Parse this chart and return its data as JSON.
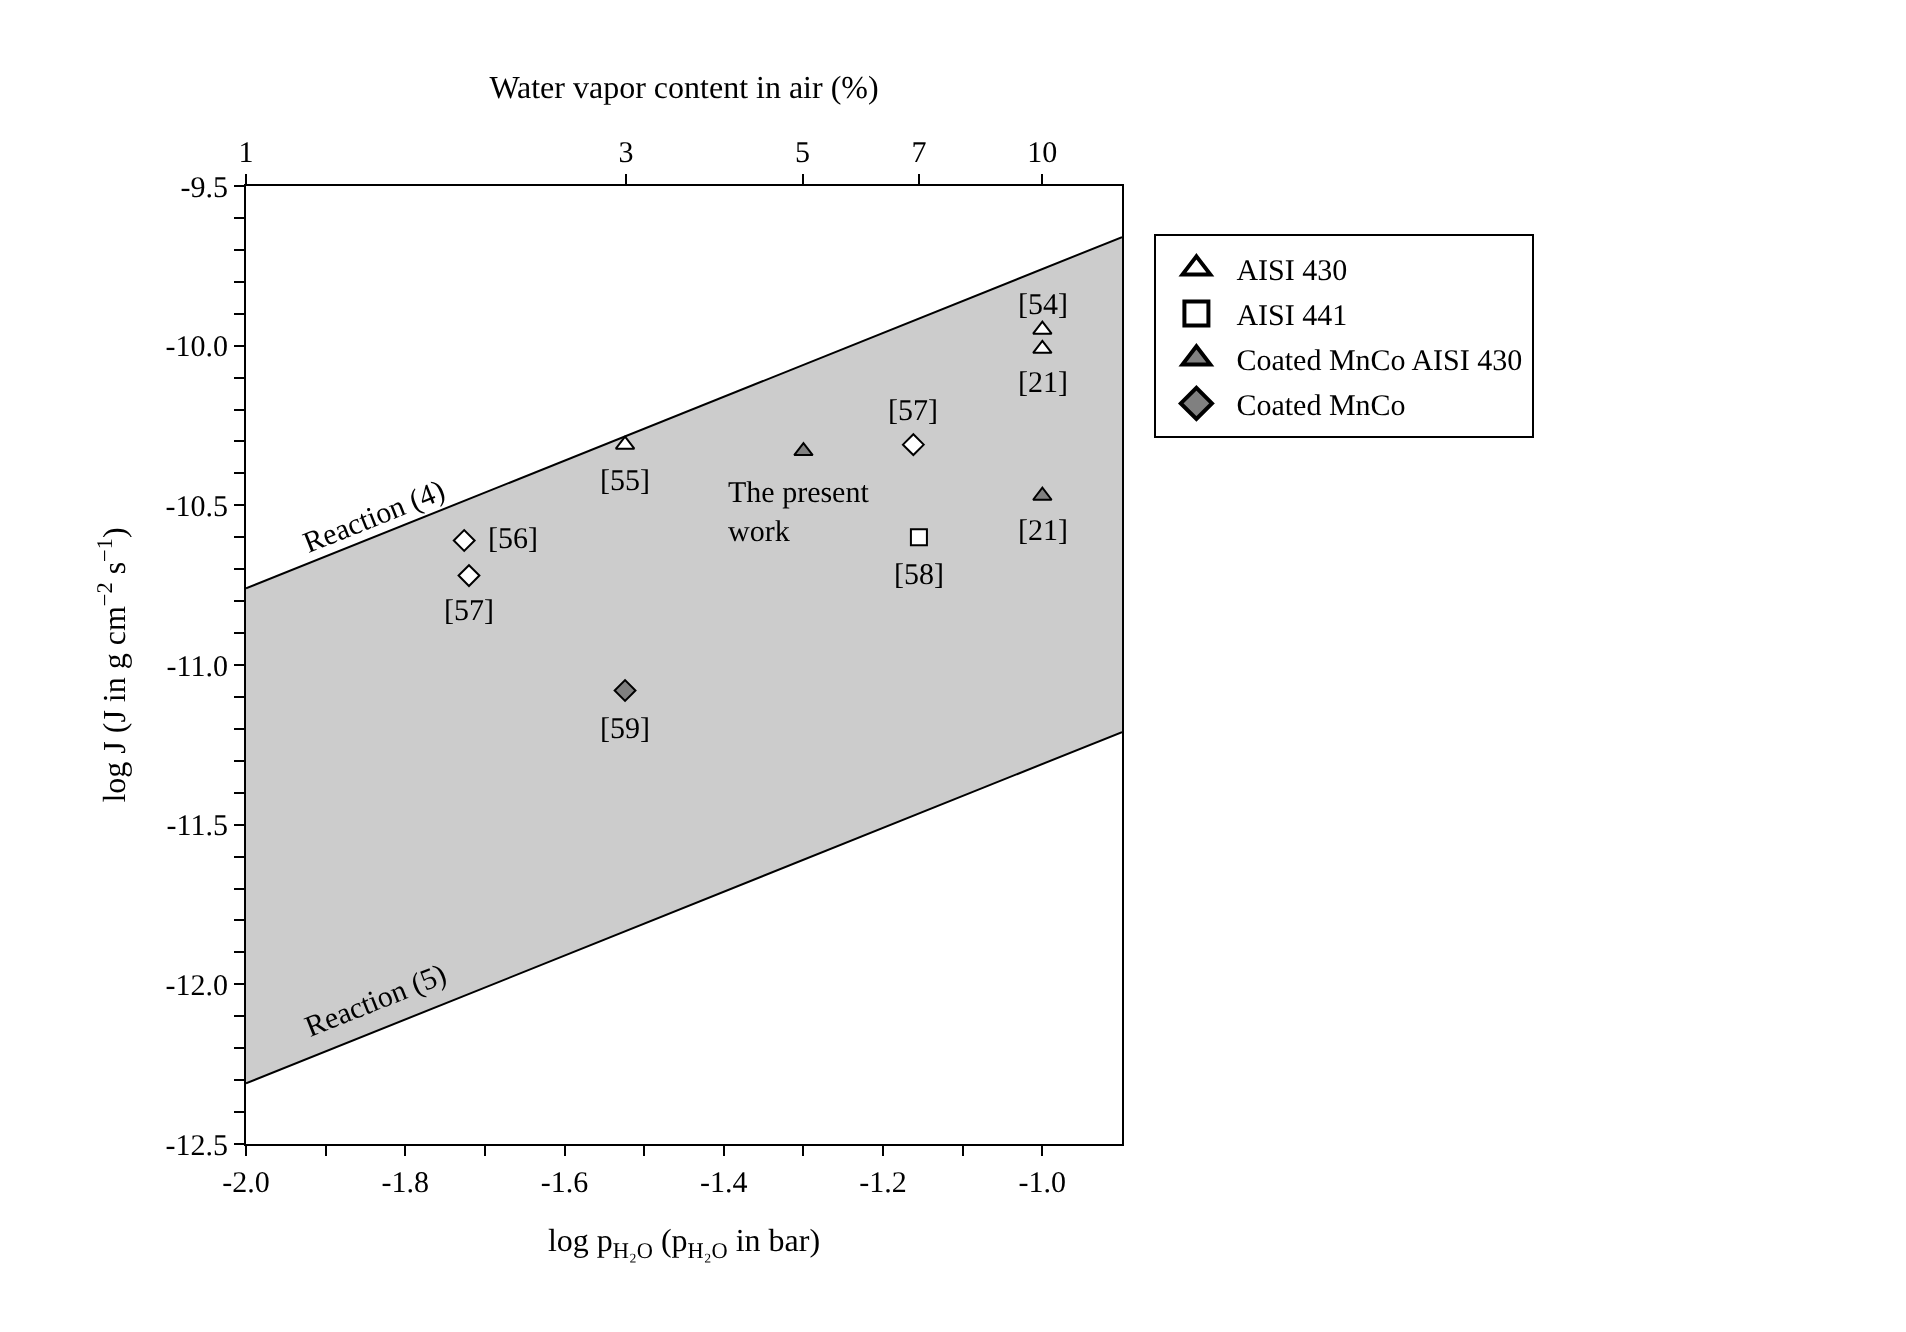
{
  "chart_data": {
    "type": "scatter",
    "xlabel": "log p$_{H₂O}$ (p$_{H₂O}$ in bar)",
    "ylabel": "log J (J in g cm$^{−2}$ s$^{−1}$)",
    "x2label": "Water vapor content in air (%)",
    "xlim": [
      -2.0,
      -0.9
    ],
    "ylim": [
      -12.5,
      -9.5
    ],
    "xticks": [
      {
        "value": -2.0,
        "label": "-2.0"
      },
      {
        "value": -1.9,
        "label": null
      },
      {
        "value": -1.8,
        "label": "-1.8"
      },
      {
        "value": -1.7,
        "label": null
      },
      {
        "value": -1.6,
        "label": "-1.6"
      },
      {
        "value": -1.5,
        "label": null
      },
      {
        "value": -1.4,
        "label": "-1.4"
      },
      {
        "value": -1.3,
        "label": null
      },
      {
        "value": -1.2,
        "label": "-1.2"
      },
      {
        "value": -1.1,
        "label": null
      },
      {
        "value": -1.0,
        "label": "-1.0"
      }
    ],
    "x2lim": [
      1,
      12.59
    ],
    "log": "x2",
    "x2ticks": [
      1,
      3,
      5,
      7,
      10
    ],
    "yticks": [
      {
        "value": -12.5,
        "label": "-12.5"
      },
      {
        "value": -12.4,
        "label": null
      },
      {
        "value": -12.3,
        "label": null
      },
      {
        "value": -12.2,
        "label": null
      },
      {
        "value": -12.1,
        "label": null
      },
      {
        "value": -12.0,
        "label": "-12.0"
      },
      {
        "value": -11.9,
        "label": null
      },
      {
        "value": -11.8,
        "label": null
      },
      {
        "value": -11.7,
        "label": null
      },
      {
        "value": -11.6,
        "label": null
      },
      {
        "value": -11.5,
        "label": "-11.5"
      },
      {
        "value": -11.4,
        "label": null
      },
      {
        "value": -11.3,
        "label": null
      },
      {
        "value": -11.2,
        "label": null
      },
      {
        "value": -11.1,
        "label": null
      },
      {
        "value": -11.0,
        "label": "-11.0"
      },
      {
        "value": -10.9,
        "label": null
      },
      {
        "value": -10.8,
        "label": null
      },
      {
        "value": -10.7,
        "label": null
      },
      {
        "value": -10.6,
        "label": null
      },
      {
        "value": -10.5,
        "label": "-10.5"
      },
      {
        "value": -10.4,
        "label": null
      },
      {
        "value": -10.3,
        "label": null
      },
      {
        "value": -10.2,
        "label": null
      },
      {
        "value": -10.1,
        "label": null
      },
      {
        "value": -10.0,
        "label": "-10.0"
      },
      {
        "value": -9.9,
        "label": null
      },
      {
        "value": -9.8,
        "label": null
      },
      {
        "value": -9.7,
        "label": null
      },
      {
        "value": -9.6,
        "label": null
      },
      {
        "value": -9.5,
        "label": "-9.5"
      }
    ],
    "legend": "right",
    "series": [
      {
        "type": "line",
        "color": "#000000",
        "x": [
          -2.0,
          -0.9
        ],
        "values": [
          -12.31,
          -11.21
        ],
        "marker": "none",
        "lower": [
          -12.31,
          -11.21
        ],
        "upper": [
          -10.76,
          -9.66
        ]
      },
      {
        "type": "line",
        "color": "#000000",
        "x": [
          -2.0,
          -0.9
        ],
        "values": [
          -10.76,
          -9.66
        ],
        "marker": "none"
      },
      {
        "name": "AISI 430",
        "color": "#ffffff",
        "marker": "triangle",
        "x": [
          -1.524,
          -1.0,
          -1.0
        ],
        "values": [
          -10.31,
          -9.95,
          -10.01
        ]
      },
      {
        "color": "#ffffff",
        "marker": "diamond",
        "x": [
          -1.726,
          -1.72,
          -1.162
        ],
        "values": [
          -10.61,
          -10.72,
          -10.31
        ]
      },
      {
        "name": "AISI 441",
        "color": "#ffffff",
        "marker": "square",
        "x": [
          -1.155
        ],
        "values": [
          -10.6
        ]
      },
      {
        "name": "Coated MnCo AISI 430",
        "color": "#808080",
        "marker": "triangle",
        "x": [
          -1.3,
          -1.0
        ],
        "values": [
          -10.33,
          -10.47
        ]
      },
      {
        "name": "Coated MnCo",
        "color": "#808080",
        "marker": "diamond",
        "x": [
          -1.524
        ],
        "values": [
          -11.08
        ]
      }
    ],
    "annotations": [
      {
        "text": "[55]",
        "x": -1.524,
        "y": -10.31
      },
      {
        "text": "[54]",
        "x": -1.0,
        "y": -9.95
      },
      {
        "text": "[21]",
        "x": -1.0,
        "y": -10.01
      },
      {
        "text": "[57]",
        "x": -1.162,
        "y": -10.31
      },
      {
        "text": "[21]",
        "x": -1.0,
        "y": -10.47
      },
      {
        "text": "[58]",
        "x": -1.155,
        "y": -10.6
      },
      {
        "text": "[56]",
        "x": -1.726,
        "y": -10.61
      },
      {
        "text": "[57]",
        "x": -1.72,
        "y": -10.72
      },
      {
        "text": "[59]",
        "x": -1.524,
        "y": -11.08
      },
      {
        "text": "The present\nwork",
        "x": -1.3,
        "y": -10.33
      },
      {
        "text": "Reaction (5)",
        "x": -1.836,
        "y": -12.146
      },
      {
        "text": "Reaction (4)",
        "x": -1.838,
        "y": -10.597
      }
    ]
  }
}
